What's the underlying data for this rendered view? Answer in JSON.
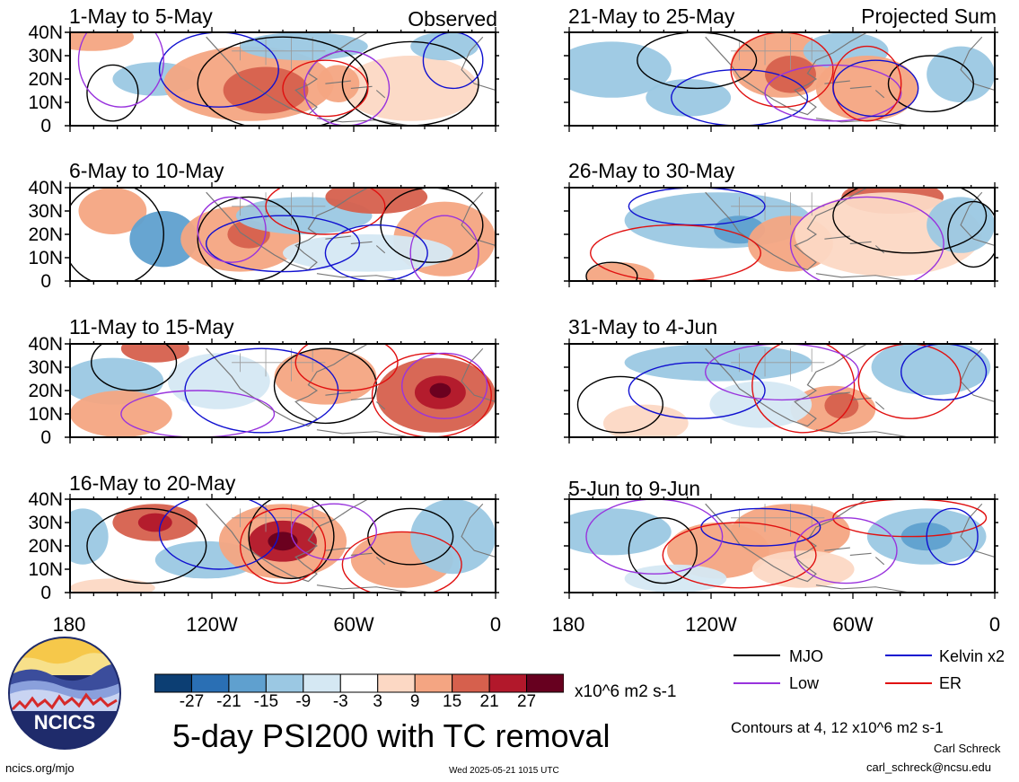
{
  "corner_labels": {
    "left": "Observed",
    "right": "Projected Sum"
  },
  "panels": [
    {
      "title": "1-May to 5-May"
    },
    {
      "title": "21-May to 25-May"
    },
    {
      "title": "6-May to 10-May"
    },
    {
      "title": "26-May to 30-May"
    },
    {
      "title": "11-May to 15-May"
    },
    {
      "title": "31-May to 4-Jun"
    },
    {
      "title": "16-May to 20-May"
    },
    {
      "title": "5-Jun to 9-Jun"
    }
  ],
  "lat_labels": [
    "40N",
    "30N",
    "20N",
    "10N",
    "0"
  ],
  "lon_labels": [
    "180",
    "120W",
    "60W",
    "0"
  ],
  "colorbar": {
    "colors": [
      "#0c3e73",
      "#2a6fb4",
      "#5fa0cf",
      "#9bc8e3",
      "#d5e8f3",
      "#ffffff",
      "#fcd8c4",
      "#f4a582",
      "#d6604d",
      "#b2182b",
      "#67001f"
    ],
    "labels": [
      "-27",
      "-21",
      "-15",
      "-9",
      "-3",
      "3",
      "9",
      "15",
      "21",
      "27"
    ],
    "units": "x10^6 m2 s-1"
  },
  "legend": {
    "items": [
      {
        "label": "MJO",
        "color": "#000000"
      },
      {
        "label": "Kelvin x2",
        "color": "#1010d0"
      },
      {
        "label": "Low",
        "color": "#9933dd"
      },
      {
        "label": "ER",
        "color": "#e01010"
      }
    ]
  },
  "title": "5-day PSI200 with TC removal",
  "contours_note": "Contours at 4, 12 x10^6 m2 s-1",
  "author": "Carl Schreck",
  "email": "carl_schreck@ncsu.edu",
  "website": "ncics.org/mjo",
  "timestamp": "Wed 2025-05-21 1015 UTC",
  "logo_text": "NCICS"
}
